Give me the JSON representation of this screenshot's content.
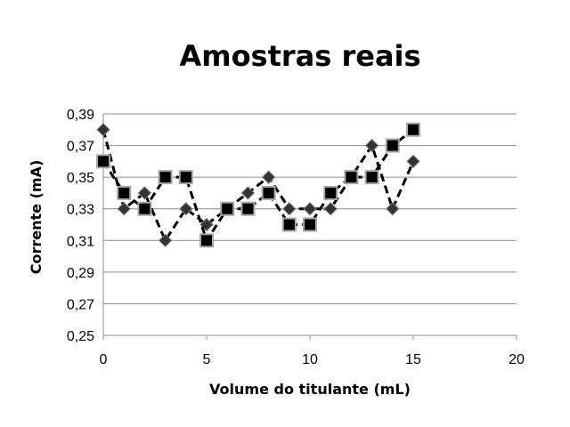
{
  "chart_data": {
    "type": "line",
    "title": "Amostras reais",
    "xlabel": "Volume do titulante (mL)",
    "ylabel": "Corrente (mA)",
    "xlim": [
      0,
      20
    ],
    "ylim": [
      0.25,
      0.39
    ],
    "x_ticks": [
      0,
      5,
      10,
      15,
      20
    ],
    "x_tick_labels": [
      "0",
      "5",
      "10",
      "15",
      "20"
    ],
    "y_ticks": [
      0.25,
      0.27,
      0.29,
      0.31,
      0.33,
      0.35,
      0.37,
      0.39
    ],
    "y_tick_labels": [
      "0,25",
      "0,27",
      "0,29",
      "0,31",
      "0,33",
      "0,35",
      "0,37",
      "0,39"
    ],
    "grid": "horizontal",
    "legend": "none",
    "series": [
      {
        "marker": "diamond",
        "line_style": "dashed",
        "color": "#000000",
        "marker_fill": "#333333",
        "marker_edge": "#7f7f7f",
        "x": [
          0,
          1,
          2,
          3,
          4,
          5,
          6,
          7,
          8,
          9,
          10,
          11,
          12,
          13,
          14,
          15
        ],
        "values": [
          0.38,
          0.33,
          0.34,
          0.31,
          0.33,
          0.32,
          0.33,
          0.34,
          0.35,
          0.33,
          0.33,
          0.33,
          0.35,
          0.37,
          0.33,
          0.36
        ]
      },
      {
        "marker": "square",
        "line_style": "dashed",
        "color": "#000000",
        "marker_fill": "#000000",
        "marker_edge": "#a6a6a6",
        "x": [
          0,
          1,
          2,
          3,
          4,
          5,
          6,
          7,
          8,
          9,
          10,
          11,
          12,
          13,
          14,
          15
        ],
        "values": [
          0.36,
          0.34,
          0.33,
          0.35,
          0.35,
          0.31,
          0.33,
          0.33,
          0.34,
          0.32,
          0.32,
          0.34,
          0.35,
          0.35,
          0.37,
          0.38
        ]
      }
    ]
  }
}
